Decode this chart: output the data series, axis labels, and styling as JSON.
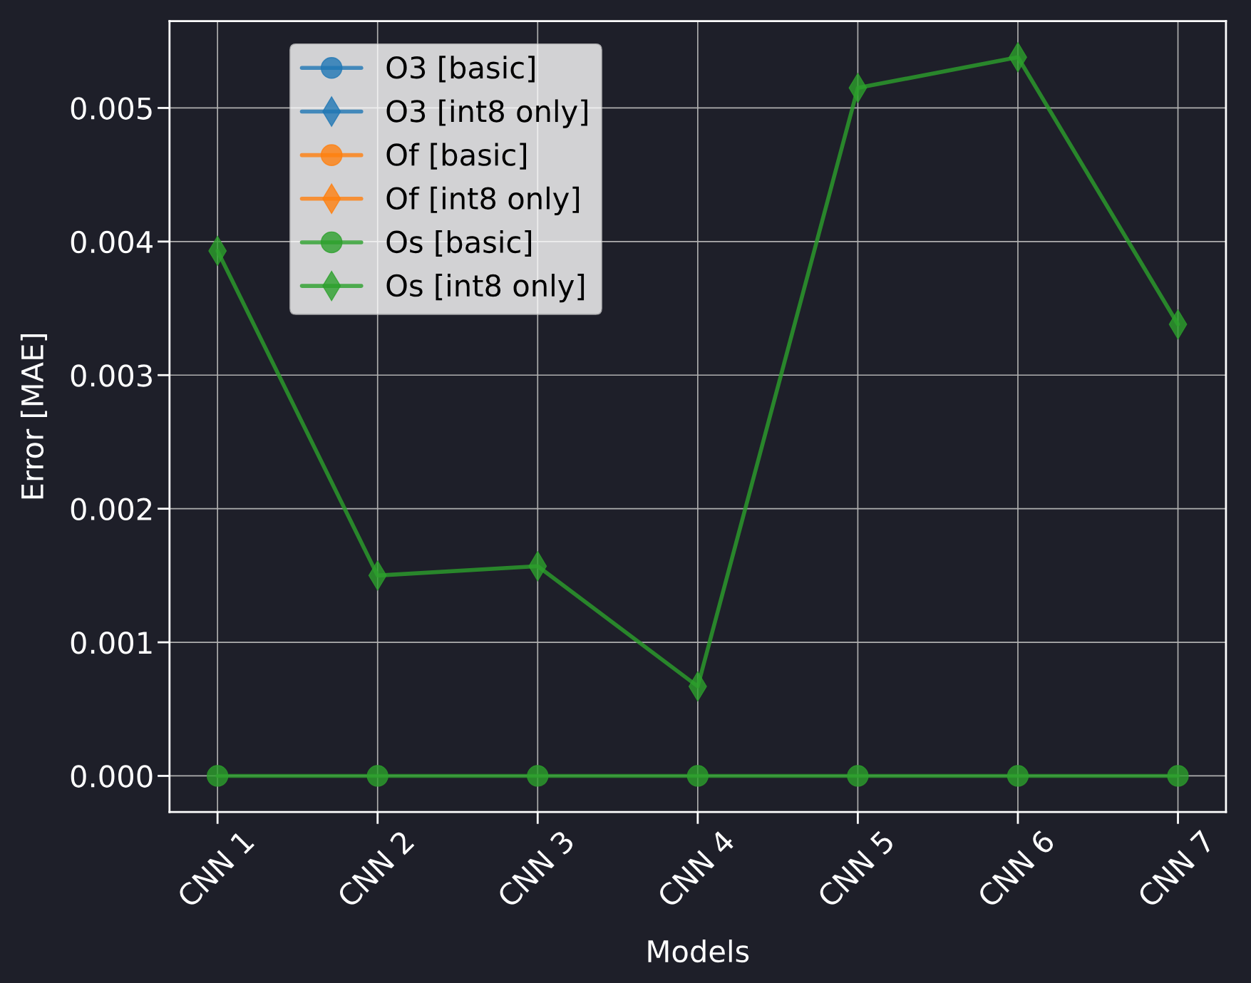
{
  "chart_data": {
    "type": "line",
    "xlabel": "Models",
    "ylabel": "Error [MAE]",
    "categories": [
      "CNN 1",
      "CNN 2",
      "CNN 3",
      "CNN 4",
      "CNN 5",
      "CNN 6",
      "CNN 7"
    ],
    "series": [
      {
        "name": "O3 [basic]",
        "color": "#1f77b4",
        "marker": "circle",
        "values": [
          null,
          null,
          null,
          null,
          null,
          null,
          null
        ]
      },
      {
        "name": "O3 [int8 only]",
        "color": "#1f77b4",
        "marker": "diamond",
        "values": [
          null,
          null,
          null,
          null,
          null,
          null,
          null
        ]
      },
      {
        "name": "Of [basic]",
        "color": "#ff7f0e",
        "marker": "circle",
        "values": [
          null,
          null,
          null,
          null,
          null,
          null,
          null
        ]
      },
      {
        "name": "Of [int8 only]",
        "color": "#ff7f0e",
        "marker": "diamond",
        "values": [
          null,
          null,
          null,
          null,
          null,
          null,
          null
        ]
      },
      {
        "name": "Os [basic]",
        "color": "#2ca02c",
        "marker": "circle",
        "values": [
          0,
          0,
          0,
          0,
          0,
          0,
          0
        ]
      },
      {
        "name": "Os [int8 only]",
        "color": "#2ca02c",
        "marker": "diamond",
        "values": [
          0.00393,
          0.0015,
          0.00157,
          0.00067,
          0.00515,
          0.00538,
          0.00338
        ]
      }
    ],
    "ylim": [
      -0.00027,
      0.00565
    ],
    "yticks": [
      {
        "value": 0,
        "label": "0.000"
      },
      0.001,
      0.002,
      0.003,
      0.004,
      0.005
    ],
    "grid": true,
    "legend": "top left",
    "line_style": "solid"
  }
}
